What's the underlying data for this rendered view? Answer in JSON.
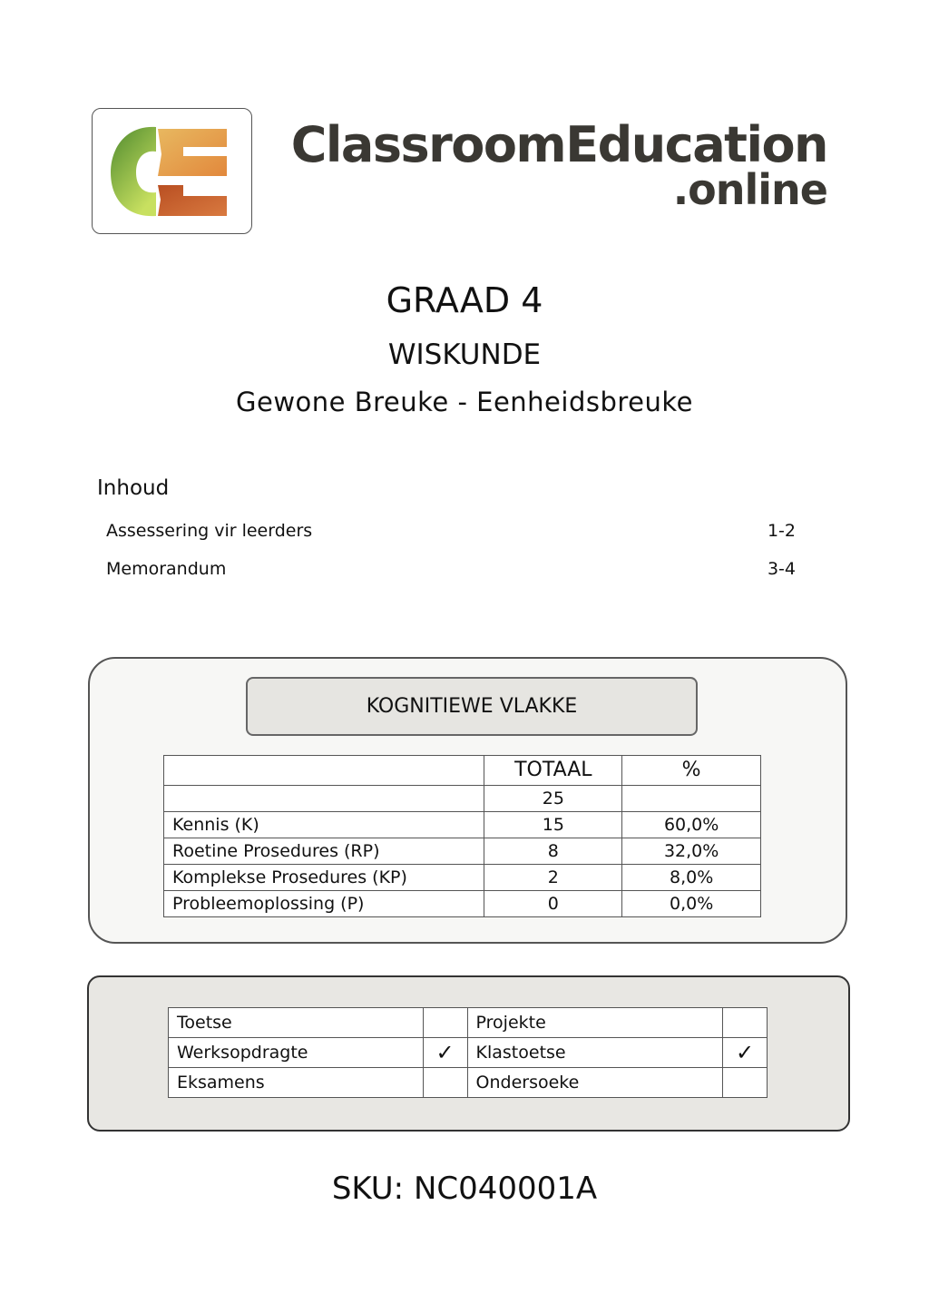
{
  "logo": {
    "text": "ClassroomEducation.online",
    "brand_main": "ClassroomEducation",
    "brand_sub": ".online",
    "colors": {
      "green": "#6aa53a",
      "orange": "#e39a45",
      "rust": "#c25c2a",
      "text": "#3a3833"
    }
  },
  "title": {
    "grade": "GRAAD 4",
    "subject": "WISKUNDE",
    "topic": "Gewone Breuke - Eenheidsbreuke"
  },
  "toc": {
    "heading": "Inhoud",
    "items": [
      {
        "label": "Assessering vir leerders",
        "pages": "1-2"
      },
      {
        "label": "Memorandum",
        "pages": "3-4"
      }
    ]
  },
  "cognitive": {
    "heading": "KOGNITIEWE VLAKKE",
    "columns": [
      "",
      "TOTAAL",
      "%"
    ],
    "total": "25",
    "rows": [
      [
        "Kennis (K)",
        "15",
        "60,0%"
      ],
      [
        "Roetine Prosedures (RP)",
        "8",
        "32,0%"
      ],
      [
        "Komplekse Prosedure (KP)",
        "2",
        "8,0%"
      ],
      [
        "Probleemoplossing (P)",
        "0",
        "0,0%"
      ]
    ]
  },
  "assessment_types": {
    "rows": [
      {
        "left": "Toetse",
        "left_check": "",
        "right": "Projekte",
        "right_check": ""
      },
      {
        "left": "Werksopdragte",
        "left_check": "✓",
        "right": "Klastoetse",
        "right_check": "✓"
      },
      {
        "left": "Eksamens",
        "left_check": "",
        "right": "Ondersoeke",
        "right_check": ""
      }
    ]
  },
  "sku": "SKU: NC040001A"
}
